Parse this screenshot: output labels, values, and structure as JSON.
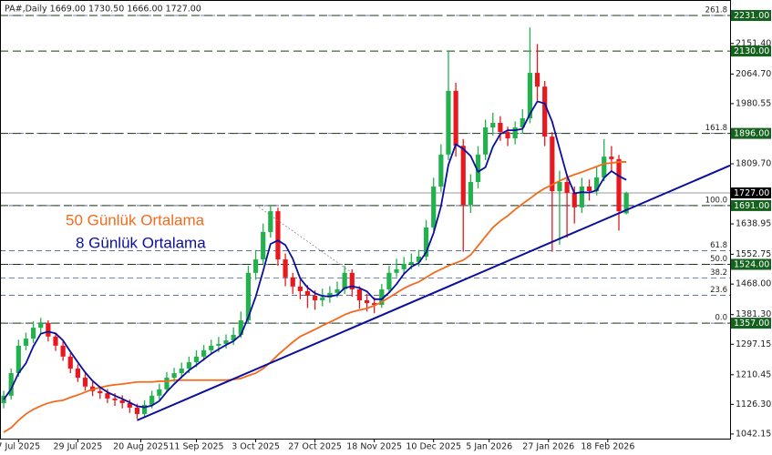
{
  "chart_data": {
    "type": "candlestick",
    "title": "PA#,Daily  1669.00 1730.50 1666.00 1727.00",
    "xlim": [
      -1,
      196
    ],
    "ylim": [
      1029,
      2275
    ],
    "up_color": "#22b14c",
    "down_color": "#e8191e",
    "x": [
      0,
      2,
      4,
      6,
      8,
      10,
      12,
      14,
      16,
      18,
      20,
      22,
      24,
      26,
      28,
      30,
      32,
      34,
      36,
      38,
      40,
      42,
      44,
      46,
      48,
      50,
      52,
      54,
      56,
      58,
      60,
      62,
      64,
      66,
      68,
      70,
      72,
      74,
      76,
      78,
      80,
      82,
      84,
      86,
      88,
      90,
      92,
      94,
      96,
      98,
      100,
      102,
      104,
      106,
      108,
      110,
      112,
      114,
      116,
      118,
      120,
      122,
      124,
      126,
      128,
      130,
      132,
      134,
      136,
      138,
      140,
      142,
      144,
      146,
      148,
      150,
      152,
      154,
      156,
      158,
      160,
      162,
      164,
      166,
      168
    ],
    "open": [
      1130,
      1151,
      1215,
      1293,
      1313,
      1344,
      1357,
      1319,
      1293,
      1262,
      1228,
      1202,
      1177,
      1164,
      1158,
      1143,
      1138,
      1130,
      1117,
      1099,
      1125,
      1151,
      1169,
      1202,
      1215,
      1228,
      1246,
      1262,
      1280,
      1293,
      1298,
      1308,
      1324,
      1365,
      1500,
      1538,
      1616,
      1675,
      1538,
      1487,
      1461,
      1448,
      1435,
      1422,
      1430,
      1443,
      1453,
      1500,
      1453,
      1422,
      1414,
      1409,
      1453,
      1500,
      1510,
      1525,
      1531,
      1546,
      1629,
      1745,
      1836,
      2017,
      1861,
      1693,
      1758,
      1836,
      1913,
      1926,
      1900,
      1882,
      1913,
      1939,
      2068,
      2029,
      1887,
      1732,
      1758,
      1727,
      1686,
      1745,
      1732,
      1771,
      1830,
      1823,
      1669
    ],
    "high": [
      1165,
      1228,
      1310,
      1330,
      1362,
      1372,
      1365,
      1330,
      1305,
      1272,
      1240,
      1215,
      1190,
      1178,
      1170,
      1158,
      1152,
      1140,
      1128,
      1138,
      1165,
      1185,
      1218,
      1230,
      1245,
      1262,
      1280,
      1295,
      1310,
      1318,
      1325,
      1345,
      1390,
      1520,
      1565,
      1640,
      1693,
      1685,
      1555,
      1500,
      1480,
      1465,
      1450,
      1455,
      1462,
      1475,
      1520,
      1510,
      1462,
      1440,
      1430,
      1468,
      1520,
      1540,
      1545,
      1555,
      1565,
      1650,
      1770,
      1865,
      2132,
      2040,
      1880,
      1780,
      1860,
      1935,
      1955,
      1945,
      1915,
      1930,
      1965,
      2197,
      2150,
      2045,
      1900,
      1790,
      1780,
      1745,
      1770,
      1765,
      1800,
      1880,
      1860,
      1835,
      1730.5
    ],
    "low": [
      1115,
      1140,
      1205,
      1280,
      1300,
      1325,
      1305,
      1278,
      1250,
      1215,
      1190,
      1165,
      1150,
      1142,
      1130,
      1122,
      1115,
      1102,
      1085,
      1090,
      1115,
      1140,
      1160,
      1190,
      1200,
      1215,
      1232,
      1250,
      1268,
      1275,
      1285,
      1295,
      1315,
      1355,
      1480,
      1525,
      1600,
      1520,
      1462,
      1440,
      1425,
      1400,
      1395,
      1405,
      1415,
      1430,
      1440,
      1432,
      1398,
      1390,
      1385,
      1400,
      1445,
      1488,
      1495,
      1510,
      1518,
      1535,
      1620,
      1730,
      1820,
      1830,
      1560,
      1670,
      1740,
      1820,
      1890,
      1875,
      1860,
      1865,
      1895,
      1925,
      1990,
      1860,
      1560,
      1580,
      1600,
      1640,
      1670,
      1705,
      1720,
      1760,
      1790,
      1620,
      1666
    ],
    "close": [
      1151,
      1215,
      1293,
      1313,
      1344,
      1357,
      1319,
      1293,
      1262,
      1228,
      1202,
      1177,
      1164,
      1158,
      1143,
      1138,
      1130,
      1117,
      1099,
      1125,
      1151,
      1169,
      1202,
      1215,
      1228,
      1246,
      1262,
      1280,
      1293,
      1298,
      1308,
      1324,
      1365,
      1500,
      1538,
      1616,
      1675,
      1538,
      1487,
      1461,
      1448,
      1435,
      1422,
      1430,
      1443,
      1453,
      1500,
      1453,
      1422,
      1414,
      1409,
      1453,
      1500,
      1510,
      1525,
      1531,
      1546,
      1629,
      1745,
      1836,
      2017,
      1861,
      1693,
      1758,
      1836,
      1913,
      1926,
      1900,
      1882,
      1913,
      1939,
      2068,
      2029,
      1887,
      1732,
      1758,
      1727,
      1686,
      1745,
      1732,
      1771,
      1830,
      1823,
      1675,
      1727
    ],
    "series": [
      {
        "name": "50 Günlük Ortalama",
        "color": "#f26b1d",
        "values": [
          1047,
          1060,
          1081,
          1099,
          1112,
          1122,
          1130,
          1135,
          1138,
          1146,
          1153,
          1161,
          1169,
          1174,
          1179,
          1182,
          1184,
          1187,
          1190,
          1190,
          1190,
          1192,
          1192,
          1195,
          1195,
          1195,
          1195,
          1195,
          1195,
          1195,
          1195,
          1197,
          1200,
          1208,
          1215,
          1228,
          1246,
          1267,
          1285,
          1303,
          1319,
          1329,
          1339,
          1350,
          1360,
          1370,
          1381,
          1389,
          1394,
          1399,
          1407,
          1417,
          1430,
          1443,
          1456,
          1466,
          1474,
          1487,
          1500,
          1510,
          1520,
          1528,
          1536,
          1551,
          1577,
          1603,
          1629,
          1647,
          1662,
          1680,
          1696,
          1711,
          1727,
          1740,
          1750,
          1761,
          1771,
          1779,
          1786,
          1794,
          1802,
          1810,
          1812,
          1815,
          1815
        ]
      },
      {
        "name": "8 Günlük Ortalama",
        "color": "#0b0f9e",
        "values": [
          1140,
          1170,
          1215,
          1243,
          1291,
          1327,
          1333,
          1328,
          1308,
          1276,
          1246,
          1217,
          1193,
          1175,
          1161,
          1151,
          1142,
          1132,
          1121,
          1118,
          1123,
          1136,
          1162,
          1184,
          1204,
          1223,
          1238,
          1254,
          1270,
          1283,
          1295,
          1306,
          1324,
          1374,
          1432,
          1505,
          1582,
          1592,
          1579,
          1540,
          1484,
          1458,
          1442,
          1434,
          1433,
          1437,
          1457,
          1462,
          1457,
          1447,
          1425,
          1425,
          1444,
          1468,
          1497,
          1517,
          1528,
          1558,
          1613,
          1689,
          1807,
          1865,
          1852,
          1832,
          1787,
          1800,
          1858,
          1894,
          1905,
          1905,
          1909,
          1951,
          1987,
          1981,
          1929,
          1852,
          1776,
          1726,
          1729,
          1728,
          1734,
          1770,
          1789,
          1775,
          1764
        ]
      }
    ],
    "trendlines": [
      {
        "x": [
          36,
          196
        ],
        "values": [
          1081,
          1805
        ],
        "color": "#0b0f9e",
        "style": "solid"
      },
      {
        "x": [
          68,
          94
        ],
        "values": [
          1693,
          1500
        ],
        "color": "#888888",
        "style": "dotted"
      }
    ],
    "levels": [
      {
        "value": 2231,
        "label": "2231.00"
      },
      {
        "value": 2130,
        "label": "2130.00"
      },
      {
        "value": 1896,
        "label": "1896.00"
      },
      {
        "value": 1691,
        "label": "1691.00"
      },
      {
        "value": 1524,
        "label": "1524.00"
      },
      {
        "value": 1357,
        "label": "1357.00"
      }
    ],
    "price_line": {
      "value": 1727,
      "label": "1727.00"
    },
    "fib_levels": [
      {
        "value": 2231,
        "label": "261.8"
      },
      {
        "value": 1896,
        "label": "161.8"
      },
      {
        "value": 1691,
        "label": "100.0"
      },
      {
        "value": 1563,
        "label": "61.8"
      },
      {
        "value": 1524,
        "label": "50.0"
      },
      {
        "value": 1485,
        "label": "38.2"
      },
      {
        "value": 1436,
        "label": "23.6"
      },
      {
        "value": 1357,
        "label": "0.0"
      }
    ],
    "yticks": [
      {
        "value": 2151.4,
        "label": "2151.40"
      },
      {
        "value": 2064.7,
        "label": "2064.70"
      },
      {
        "value": 1980.55,
        "label": "1980.55"
      },
      {
        "value": 1809.7,
        "label": "1809.70"
      },
      {
        "value": 1638.95,
        "label": "1638.95"
      },
      {
        "value": 1552.75,
        "label": "1552.75"
      },
      {
        "value": 1468,
        "label": "1468.00"
      },
      {
        "value": 1381.3,
        "label": "1381.30"
      },
      {
        "value": 1297.15,
        "label": "1297.15"
      },
      {
        "value": 1210.45,
        "label": "1210.45"
      },
      {
        "value": 1126.3,
        "label": "1126.30"
      },
      {
        "value": 1042.15,
        "label": "1042.15"
      }
    ],
    "xticks": [
      {
        "value": 4,
        "label": "7 Jul 2025"
      },
      {
        "value": 20,
        "label": "29 Jul 2025"
      },
      {
        "value": 37,
        "label": "20 Aug 2025"
      },
      {
        "value": 52,
        "label": "11 Sep 2025"
      },
      {
        "value": 68,
        "label": "3 Oct 2025"
      },
      {
        "value": 84,
        "label": "27 Oct 2025"
      },
      {
        "value": 100,
        "label": "18 Nov 2025"
      },
      {
        "value": 116,
        "label": "10 Dec 2025"
      },
      {
        "value": 131,
        "label": "5 Jan 2026"
      },
      {
        "value": 147,
        "label": "27 Jan 2026"
      },
      {
        "value": 163,
        "label": "18 Feb 2026"
      }
    ]
  }
}
